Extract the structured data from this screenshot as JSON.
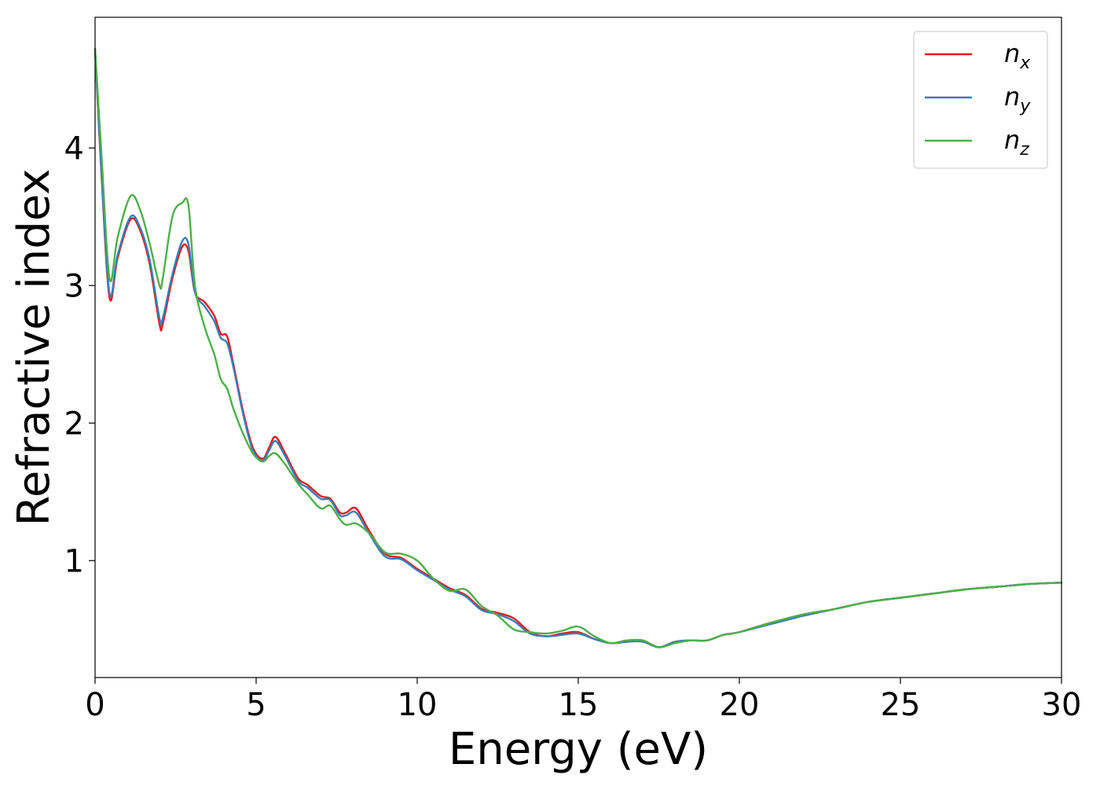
{
  "chart_data": {
    "type": "line",
    "title": "",
    "xlabel": "Energy (eV)",
    "ylabel": "Refractive index",
    "xlim": [
      0,
      30
    ],
    "ylim": [
      0.15,
      4.95
    ],
    "xticks": [
      0,
      5,
      10,
      15,
      20,
      25,
      30
    ],
    "yticks": [
      1,
      2,
      3,
      4
    ],
    "grid": false,
    "legend_placement": "top-right",
    "series": [
      {
        "name": "n_x",
        "label_base": "n",
        "label_sub": "x",
        "color": "#e41a1c",
        "x": [
          0,
          0.2,
          0.45,
          0.7,
          1.1,
          1.4,
          1.7,
          2.0,
          2.1,
          2.4,
          2.7,
          2.9,
          3.1,
          3.4,
          3.7,
          3.9,
          4.1,
          4.3,
          4.6,
          4.9,
          5.2,
          5.4,
          5.6,
          5.9,
          6.3,
          6.6,
          7.0,
          7.3,
          7.6,
          7.8,
          8.1,
          8.5,
          9.0,
          9.5,
          10.0,
          10.5,
          11.0,
          11.5,
          12.0,
          12.5,
          13.0,
          13.5,
          14.0,
          14.5,
          15.0,
          15.5,
          16.0,
          16.5,
          17.0,
          17.5,
          18.0,
          18.5,
          19.0,
          19.5,
          20.0,
          21.0,
          22.0,
          23.0,
          24.0,
          25.0,
          26.0,
          27.0,
          28.0,
          29.0,
          30.0
        ],
        "values": [
          4.72,
          3.8,
          2.91,
          3.2,
          3.48,
          3.4,
          3.15,
          2.72,
          2.72,
          3.05,
          3.28,
          3.25,
          2.95,
          2.88,
          2.78,
          2.65,
          2.63,
          2.42,
          2.08,
          1.82,
          1.74,
          1.82,
          1.9,
          1.78,
          1.6,
          1.55,
          1.47,
          1.45,
          1.35,
          1.35,
          1.38,
          1.22,
          1.05,
          1.02,
          0.94,
          0.87,
          0.8,
          0.75,
          0.65,
          0.62,
          0.58,
          0.48,
          0.45,
          0.47,
          0.48,
          0.43,
          0.4,
          0.41,
          0.42,
          0.37,
          0.41,
          0.42,
          0.42,
          0.46,
          0.48,
          0.55,
          0.6,
          0.65,
          0.7,
          0.73,
          0.76,
          0.79,
          0.81,
          0.83,
          0.84
        ]
      },
      {
        "name": "n_y",
        "label_base": "n",
        "label_sub": "y",
        "color": "#377eb8",
        "x": [
          0,
          0.2,
          0.45,
          0.7,
          1.1,
          1.4,
          1.7,
          2.0,
          2.1,
          2.4,
          2.7,
          2.9,
          3.1,
          3.4,
          3.7,
          3.9,
          4.1,
          4.3,
          4.6,
          4.9,
          5.2,
          5.4,
          5.6,
          5.9,
          6.3,
          6.6,
          7.0,
          7.3,
          7.6,
          7.8,
          8.1,
          8.5,
          9.0,
          9.5,
          10.0,
          10.5,
          11.0,
          11.5,
          12.0,
          12.5,
          13.0,
          13.5,
          14.0,
          14.5,
          15.0,
          15.5,
          16.0,
          16.5,
          17.0,
          17.5,
          18.0,
          18.5,
          19.0,
          19.5,
          20.0,
          21.0,
          22.0,
          23.0,
          24.0,
          25.0,
          26.0,
          27.0,
          28.0,
          29.0,
          30.0
        ],
        "values": [
          4.72,
          3.82,
          2.94,
          3.22,
          3.5,
          3.42,
          3.18,
          2.76,
          2.76,
          3.08,
          3.32,
          3.3,
          2.95,
          2.85,
          2.74,
          2.62,
          2.58,
          2.4,
          2.06,
          1.8,
          1.73,
          1.8,
          1.87,
          1.76,
          1.58,
          1.53,
          1.45,
          1.44,
          1.33,
          1.33,
          1.35,
          1.2,
          1.03,
          1.01,
          0.93,
          0.86,
          0.79,
          0.74,
          0.64,
          0.61,
          0.56,
          0.47,
          0.45,
          0.46,
          0.47,
          0.43,
          0.4,
          0.41,
          0.41,
          0.37,
          0.41,
          0.42,
          0.42,
          0.46,
          0.48,
          0.54,
          0.6,
          0.65,
          0.7,
          0.73,
          0.76,
          0.79,
          0.81,
          0.83,
          0.84
        ]
      },
      {
        "name": "n_z",
        "label_base": "n",
        "label_sub": "z",
        "color": "#4daf4a",
        "x": [
          0,
          0.2,
          0.45,
          0.7,
          1.1,
          1.4,
          1.7,
          2.0,
          2.1,
          2.4,
          2.7,
          2.9,
          3.1,
          3.4,
          3.7,
          3.9,
          4.1,
          4.3,
          4.6,
          4.9,
          5.2,
          5.4,
          5.6,
          5.9,
          6.3,
          6.6,
          7.0,
          7.3,
          7.6,
          7.8,
          8.1,
          8.5,
          9.0,
          9.5,
          10.0,
          10.5,
          11.0,
          11.5,
          12.0,
          12.5,
          13.0,
          13.5,
          14.0,
          14.5,
          15.0,
          15.5,
          16.0,
          16.5,
          17.0,
          17.5,
          18.0,
          18.5,
          19.0,
          19.5,
          20.0,
          21.0,
          22.0,
          23.0,
          24.0,
          25.0,
          26.0,
          27.0,
          28.0,
          29.0,
          30.0
        ],
        "values": [
          4.72,
          3.95,
          3.05,
          3.35,
          3.65,
          3.55,
          3.3,
          3.0,
          3.05,
          3.5,
          3.6,
          3.58,
          3.0,
          2.7,
          2.5,
          2.32,
          2.25,
          2.1,
          1.92,
          1.78,
          1.72,
          1.76,
          1.78,
          1.7,
          1.56,
          1.48,
          1.38,
          1.4,
          1.3,
          1.26,
          1.27,
          1.2,
          1.06,
          1.05,
          1.0,
          0.87,
          0.78,
          0.79,
          0.67,
          0.6,
          0.5,
          0.48,
          0.47,
          0.49,
          0.52,
          0.45,
          0.4,
          0.42,
          0.42,
          0.37,
          0.4,
          0.42,
          0.42,
          0.46,
          0.48,
          0.55,
          0.61,
          0.65,
          0.7,
          0.73,
          0.76,
          0.79,
          0.81,
          0.83,
          0.84
        ]
      }
    ]
  }
}
